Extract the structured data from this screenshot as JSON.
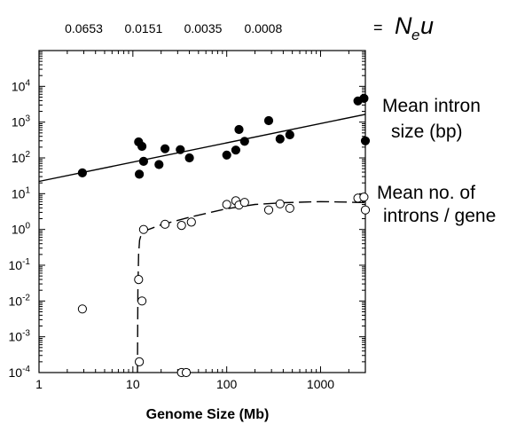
{
  "chart_data": {
    "type": "scatter",
    "xlabel": "Genome Size (Mb)",
    "x_scale": "log",
    "y_scale": "log",
    "xlim": [
      1,
      3000
    ],
    "ylim": [
      0.0001,
      100000
    ],
    "x_ticks": [
      {
        "value": 1,
        "label": "1"
      },
      {
        "value": 10,
        "label": "10"
      },
      {
        "value": 100,
        "label": "100"
      },
      {
        "value": 1000,
        "label": "1000"
      }
    ],
    "y_ticks": [
      {
        "value": 0.0001,
        "base": "10",
        "exp": "-4"
      },
      {
        "value": 0.001,
        "base": "10",
        "exp": "-3"
      },
      {
        "value": 0.01,
        "base": "10",
        "exp": "-2"
      },
      {
        "value": 0.1,
        "base": "10",
        "exp": "-1"
      },
      {
        "value": 1,
        "base": "10",
        "exp": "0"
      },
      {
        "value": 10,
        "base": "10",
        "exp": "1"
      },
      {
        "value": 100,
        "base": "10",
        "exp": "2"
      },
      {
        "value": 1000,
        "base": "10",
        "exp": "3"
      },
      {
        "value": 10000,
        "base": "10",
        "exp": "4"
      }
    ],
    "top_axis": {
      "label_equals": "=",
      "label_main": "N",
      "label_sub": "e",
      "label_tail": "u",
      "ticks": [
        {
          "label": "0.0653",
          "x": 3
        },
        {
          "label": "0.0151",
          "x": 13
        },
        {
          "label": "0.0035",
          "x": 56
        },
        {
          "label": "0.0008",
          "x": 245
        }
      ]
    },
    "grid": false,
    "series": [
      {
        "name_lines": [
          "Mean intron",
          "size (bp)"
        ],
        "marker": "filled-circle",
        "points": [
          [
            2.9,
            38
          ],
          [
            11.5,
            280
          ],
          [
            11.7,
            35
          ],
          [
            12.5,
            210
          ],
          [
            13,
            80
          ],
          [
            19,
            65
          ],
          [
            22,
            180
          ],
          [
            32,
            170
          ],
          [
            40,
            100
          ],
          [
            100,
            120
          ],
          [
            125,
            165
          ],
          [
            135,
            620
          ],
          [
            155,
            290
          ],
          [
            280,
            1100
          ],
          [
            370,
            340
          ],
          [
            470,
            440
          ],
          [
            2500,
            3900
          ],
          [
            2900,
            4600
          ],
          [
            3000,
            300
          ]
        ],
        "fit_line": {
          "style": "solid",
          "points": [
            [
              1,
              22
            ],
            [
              3000,
              1650
            ]
          ]
        }
      },
      {
        "name_lines": [
          "Mean no. of",
          "introns / gene"
        ],
        "marker": "open-circle",
        "points": [
          [
            2.9,
            0.006
          ],
          [
            11.5,
            0.04
          ],
          [
            11.7,
            0.0002
          ],
          [
            12.5,
            0.01
          ],
          [
            13,
            1
          ],
          [
            22,
            1.4
          ],
          [
            33,
            1.3
          ],
          [
            42,
            1.6
          ],
          [
            100,
            5
          ],
          [
            125,
            6.3
          ],
          [
            135,
            4.8
          ],
          [
            155,
            5.7
          ],
          [
            280,
            3.5
          ],
          [
            370,
            5.2
          ],
          [
            470,
            3.9
          ],
          [
            2500,
            7.5
          ],
          [
            2900,
            8
          ],
          [
            3000,
            3.5
          ]
        ],
        "fit_line": {
          "style": "dashed",
          "points": [
            [
              11.2,
              0.0001
            ],
            [
              11.3,
              0.02
            ],
            [
              11.5,
              0.2
            ],
            [
              11.8,
              0.5
            ],
            [
              12.5,
              0.85
            ],
            [
              20,
              1.35
            ],
            [
              40,
              2.2
            ],
            [
              100,
              3.8
            ],
            [
              200,
              5
            ],
            [
              400,
              5.6
            ],
            [
              1000,
              6
            ],
            [
              2000,
              5.8
            ],
            [
              3000,
              5.6
            ]
          ]
        }
      },
      {
        "name": "open-circles-below-axis",
        "marker": "open-circle",
        "points": [
          [
            33,
            0.0001
          ],
          [
            37,
            0.0001
          ]
        ]
      }
    ]
  }
}
